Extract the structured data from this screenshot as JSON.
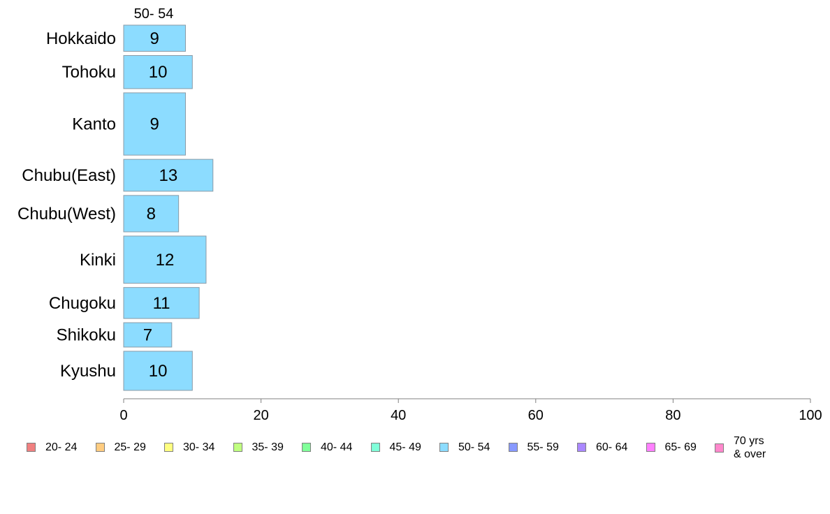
{
  "chart_data": {
    "type": "bar",
    "orientation": "horizontal",
    "series_label": "50- 54",
    "categories": [
      "Hokkaido",
      "Tohoku",
      "Kanto",
      "Chubu(East)",
      "Chubu(West)",
      "Kinki",
      "Chugoku",
      "Shikoku",
      "Kyushu"
    ],
    "values": [
      9,
      10,
      9,
      13,
      8,
      12,
      11,
      7,
      10
    ],
    "relative_widths": [
      0.87,
      1.1,
      2.07,
      1.06,
      1.21,
      1.57,
      1.03,
      0.81,
      1.3
    ],
    "xlim": [
      0,
      100
    ],
    "x_ticks": [
      0,
      20,
      40,
      60,
      80,
      100
    ],
    "bar_color": "#8cdcff",
    "legend": {
      "position": "bottom",
      "items": [
        {
          "label": "20- 24",
          "color": "#f08080"
        },
        {
          "label": "25- 29",
          "color": "#ffcc80"
        },
        {
          "label": "30- 34",
          "color": "#ffff80"
        },
        {
          "label": "35- 39",
          "color": "#c0ff80"
        },
        {
          "label": "40- 44",
          "color": "#80ff99"
        },
        {
          "label": "45- 49",
          "color": "#80ffd9"
        },
        {
          "label": "50- 54",
          "color": "#8cdcff"
        },
        {
          "label": "55- 59",
          "color": "#8899ff"
        },
        {
          "label": "60- 64",
          "color": "#aa88ff"
        },
        {
          "label": "65- 69",
          "color": "#ff80ff"
        },
        {
          "label": "70 yrs\n& over",
          "color": "#ff88cc"
        }
      ]
    }
  }
}
